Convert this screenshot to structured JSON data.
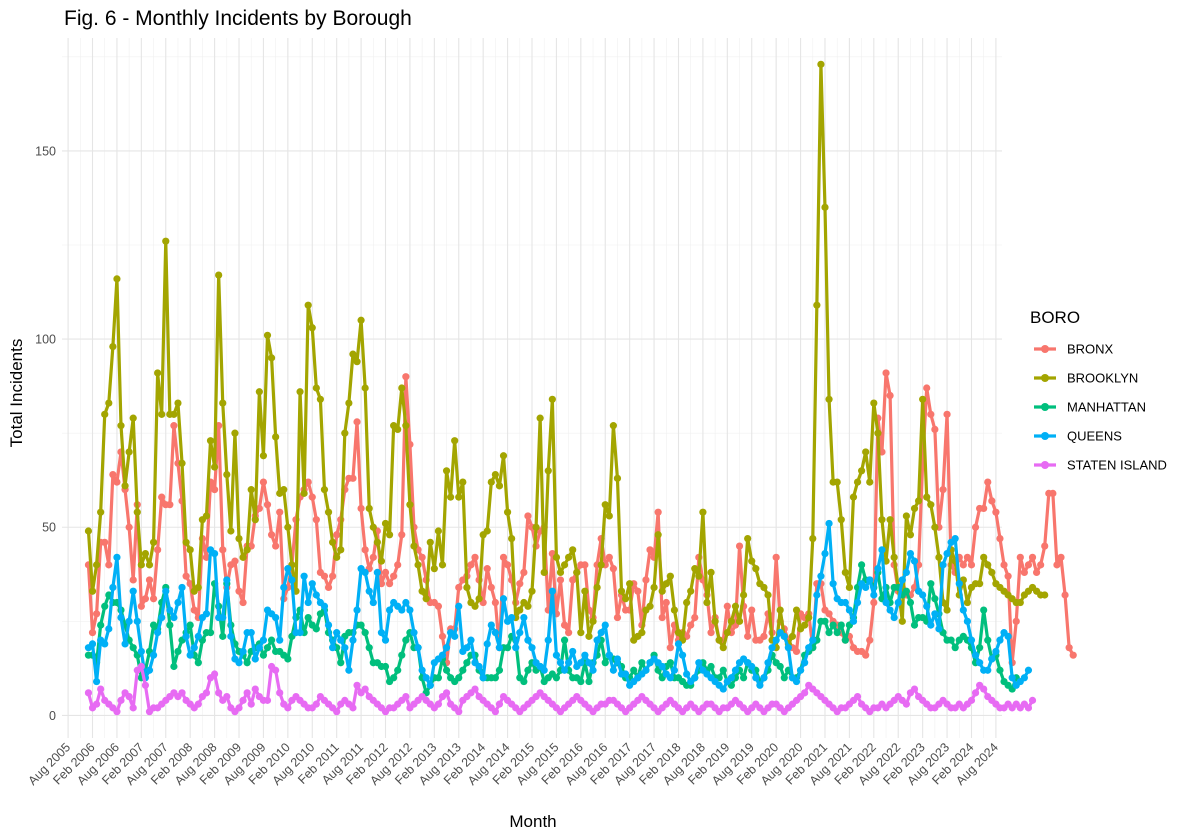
{
  "chart_data": {
    "type": "line",
    "title": "Fig. 6 - Monthly Incidents by Borough",
    "xlabel": "Month",
    "ylabel": "Total Incidents",
    "ylim": [
      -6,
      180
    ],
    "y_ticks": [
      0,
      50,
      100,
      150
    ],
    "x_ticks": [
      "Aug 2005",
      "Feb 2006",
      "Aug 2006",
      "Feb 2007",
      "Aug 2007",
      "Feb 2008",
      "Aug 2008",
      "Feb 2009",
      "Aug 2009",
      "Feb 2010",
      "Aug 2010",
      "Feb 2011",
      "Aug 2011",
      "Feb 2012",
      "Aug 2012",
      "Feb 2013",
      "Aug 2013",
      "Feb 2014",
      "Aug 2014",
      "Feb 2015",
      "Aug 2015",
      "Feb 2016",
      "Aug 2016",
      "Feb 2017",
      "Aug 2017",
      "Feb 2018",
      "Aug 2018",
      "Feb 2019",
      "Aug 2019",
      "Feb 2020",
      "Aug 2020",
      "Feb 2021",
      "Aug 2021",
      "Feb 2022",
      "Aug 2022",
      "Feb 2023",
      "Aug 2023",
      "Feb 2024",
      "Aug 2024"
    ],
    "x_start": "Jan 2006",
    "x_end": "Dec 2023",
    "grid": true,
    "legend": {
      "title": "BORO",
      "placement": "right"
    },
    "series": [
      {
        "name": "BRONX",
        "color": "#F8766D",
        "values": [
          40,
          22,
          27,
          46,
          46,
          40,
          64,
          62,
          70,
          60,
          50,
          36,
          56,
          29,
          31,
          36,
          31,
          44,
          58,
          56,
          56,
          77,
          67,
          57,
          37,
          35,
          28,
          26,
          47,
          42,
          62,
          60,
          77,
          44,
          34,
          40,
          41,
          33,
          30,
          45,
          45,
          53,
          55,
          62,
          56,
          48,
          45,
          54,
          31,
          34,
          40,
          52,
          58,
          60,
          62,
          58,
          52,
          38,
          37,
          34,
          37,
          48,
          52,
          60,
          63,
          63,
          78,
          55,
          44,
          39,
          42,
          49,
          35,
          38,
          35,
          37,
          40,
          48,
          90,
          72,
          50,
          44,
          42,
          36,
          30,
          30,
          29,
          21,
          14,
          23,
          23,
          34,
          36,
          37,
          40,
          42,
          36,
          30,
          39,
          34,
          30,
          18,
          42,
          40,
          36,
          30,
          35,
          38,
          53,
          50,
          45,
          49,
          50,
          28,
          43,
          27,
          36,
          24,
          22,
          36,
          38,
          40,
          40,
          28,
          26,
          40,
          47,
          40,
          42,
          39,
          26,
          32,
          28,
          28,
          35,
          33,
          24,
          36,
          44,
          42,
          54,
          26,
          30,
          18,
          24,
          20,
          22,
          21,
          24,
          26,
          42,
          36,
          32,
          22,
          26,
          20,
          20,
          29,
          22,
          24,
          45,
          29,
          21,
          28,
          20,
          20,
          21,
          27,
          22,
          42,
          25,
          23,
          20,
          18,
          17,
          27,
          26,
          27,
          18,
          35,
          35,
          28,
          27,
          25,
          24,
          22,
          20,
          21,
          18,
          17,
          17,
          16,
          20,
          30,
          79,
          70,
          91,
          85,
          40,
          33,
          36,
          32,
          32,
          34,
          40,
          67,
          87,
          80,
          76,
          50,
          60,
          80,
          40,
          38,
          42,
          40,
          42,
          40,
          50,
          55,
          55,
          62,
          57,
          54,
          47,
          40,
          37,
          14,
          25,
          42,
          38,
          40,
          42,
          38,
          40,
          45,
          59,
          59,
          40,
          42,
          32,
          18,
          16
        ]
      },
      {
        "name": "BROOKLYN",
        "color": "#A3A500",
        "values": [
          49,
          33,
          40,
          54,
          80,
          83,
          98,
          116,
          77,
          61,
          70,
          79,
          54,
          40,
          43,
          40,
          46,
          91,
          80,
          126,
          80,
          80,
          83,
          67,
          46,
          44,
          33,
          34,
          52,
          53,
          73,
          66,
          117,
          83,
          64,
          49,
          75,
          47,
          42,
          44,
          60,
          52,
          86,
          69,
          101,
          95,
          74,
          59,
          60,
          50,
          40,
          33,
          86,
          59,
          109,
          103,
          87,
          84,
          60,
          54,
          46,
          42,
          44,
          75,
          83,
          96,
          94,
          105,
          87,
          55,
          50,
          46,
          41,
          51,
          48,
          77,
          76,
          87,
          77,
          56,
          45,
          40,
          33,
          31,
          46,
          39,
          49,
          40,
          65,
          58,
          73,
          58,
          62,
          34,
          30,
          29,
          31,
          48,
          49,
          62,
          64,
          61,
          69,
          54,
          47,
          26,
          28,
          30,
          29,
          33,
          50,
          79,
          38,
          65,
          84,
          42,
          38,
          40,
          42,
          44,
          38,
          22,
          33,
          21,
          25,
          34,
          40,
          56,
          53,
          77,
          63,
          33,
          31,
          35,
          20,
          21,
          22,
          28,
          29,
          34,
          48,
          33,
          35,
          37,
          28,
          22,
          20,
          30,
          33,
          39,
          37,
          54,
          30,
          38,
          25,
          20,
          18,
          22,
          25,
          29,
          25,
          32,
          47,
          41,
          39,
          35,
          34,
          32,
          20,
          18,
          28,
          21,
          19,
          21,
          28,
          23,
          24,
          26,
          47,
          109,
          173,
          135,
          84,
          62,
          62,
          52,
          38,
          34,
          58,
          62,
          65,
          70,
          62,
          83,
          75,
          52,
          41,
          52,
          42,
          34,
          25,
          53,
          48,
          55,
          57,
          84,
          58,
          56,
          50,
          42,
          30,
          28,
          44,
          41,
          32,
          36,
          30,
          34,
          35,
          35,
          42,
          40,
          38,
          35,
          34,
          33,
          32,
          31,
          30,
          30,
          32,
          33,
          34,
          33,
          32,
          32
        ]
      },
      {
        "name": "MANHATTAN",
        "color": "#00BF7D",
        "values": [
          16,
          16,
          14,
          24,
          29,
          32,
          30,
          30,
          28,
          24,
          20,
          18,
          16,
          10,
          12,
          17,
          24,
          23,
          30,
          34,
          24,
          13,
          17,
          20,
          22,
          24,
          16,
          14,
          20,
          22,
          22,
          35,
          29,
          21,
          35,
          24,
          19,
          17,
          16,
          14,
          17,
          18,
          19,
          16,
          18,
          20,
          17,
          17,
          16,
          15,
          21,
          26,
          28,
          22,
          26,
          24,
          23,
          27,
          28,
          22,
          20,
          18,
          14,
          21,
          22,
          22,
          24,
          24,
          22,
          18,
          14,
          14,
          13,
          13,
          9,
          10,
          12,
          16,
          20,
          22,
          18,
          18,
          10,
          6,
          8,
          10,
          10,
          15,
          12,
          10,
          9,
          10,
          12,
          14,
          16,
          16,
          12,
          10,
          10,
          10,
          10,
          12,
          18,
          18,
          21,
          20,
          10,
          9,
          12,
          14,
          12,
          13,
          9,
          10,
          11,
          10,
          12,
          20,
          12,
          10,
          10,
          9,
          14,
          9,
          14,
          16,
          20,
          14,
          16,
          15,
          14,
          13,
          10,
          10,
          12,
          10,
          14,
          12,
          14,
          16,
          12,
          10,
          13,
          14,
          10,
          10,
          9,
          8,
          8,
          10,
          12,
          14,
          12,
          13,
          10,
          10,
          12,
          9,
          8,
          10,
          12,
          10,
          14,
          12,
          12,
          9,
          10,
          12,
          16,
          14,
          13,
          10,
          12,
          10,
          10,
          12,
          16,
          17,
          18,
          20,
          25,
          25,
          22,
          24,
          22,
          24,
          20,
          24,
          26,
          34,
          40,
          36,
          36,
          34,
          38,
          31,
          34,
          30,
          34,
          34,
          32,
          33,
          30,
          24,
          26,
          26,
          25,
          35,
          31,
          27,
          22,
          20,
          20,
          18,
          20,
          21,
          20,
          18,
          14,
          18,
          28,
          20,
          15,
          16,
          12,
          9,
          8,
          7,
          10
        ]
      },
      {
        "name": "QUEENS",
        "color": "#00B0F6",
        "values": [
          18,
          19,
          9,
          20,
          19,
          23,
          34,
          42,
          26,
          19,
          25,
          33,
          25,
          17,
          10,
          12,
          16,
          22,
          26,
          33,
          28,
          26,
          30,
          34,
          21,
          16,
          18,
          21,
          26,
          27,
          44,
          43,
          26,
          26,
          36,
          21,
          15,
          14,
          17,
          22,
          22,
          15,
          18,
          20,
          28,
          27,
          26,
          20,
          34,
          39,
          36,
          22,
          22,
          37,
          30,
          35,
          32,
          30,
          29,
          24,
          18,
          22,
          20,
          18,
          12,
          20,
          28,
          39,
          38,
          33,
          30,
          38,
          22,
          20,
          28,
          30,
          29,
          28,
          30,
          28,
          22,
          18,
          12,
          10,
          8,
          14,
          15,
          16,
          18,
          22,
          21,
          29,
          17,
          18,
          20,
          14,
          13,
          10,
          19,
          24,
          22,
          18,
          31,
          25,
          26,
          18,
          22,
          26,
          20,
          18,
          14,
          13,
          12,
          20,
          33,
          16,
          14,
          12,
          14,
          17,
          13,
          14,
          16,
          14,
          12,
          20,
          22,
          24,
          16,
          12,
          15,
          11,
          11,
          8,
          9,
          10,
          11,
          12,
          14,
          15,
          14,
          13,
          11,
          10,
          12,
          19,
          16,
          11,
          9,
          10,
          14,
          12,
          11,
          10,
          9,
          8,
          7,
          9,
          10,
          12,
          14,
          15,
          14,
          13,
          10,
          8,
          10,
          14,
          18,
          20,
          22,
          21,
          18,
          10,
          9,
          12,
          14,
          18,
          20,
          32,
          37,
          43,
          51,
          35,
          31,
          30,
          30,
          28,
          25,
          30,
          35,
          34,
          36,
          32,
          39,
          44,
          30,
          28,
          26,
          30,
          36,
          38,
          43,
          41,
          33,
          32,
          29,
          24,
          27,
          23,
          40,
          43,
          46,
          47,
          35,
          28,
          25,
          20,
          16,
          14,
          12,
          12,
          15,
          17,
          20,
          22,
          21,
          10,
          8,
          9,
          10,
          12
        ]
      },
      {
        "name": "STATEN ISLAND",
        "color": "#E76BF3",
        "values": [
          6,
          2,
          3,
          7,
          4,
          3,
          2,
          1,
          4,
          6,
          5,
          2,
          12,
          13,
          8,
          1,
          2,
          2,
          3,
          4,
          5,
          6,
          5,
          6,
          4,
          3,
          2,
          3,
          5,
          6,
          10,
          11,
          6,
          4,
          5,
          2,
          1,
          2,
          4,
          6,
          3,
          7,
          5,
          4,
          4,
          13,
          12,
          6,
          3,
          2,
          4,
          5,
          4,
          3,
          2,
          2,
          3,
          5,
          4,
          3,
          2,
          1,
          3,
          4,
          3,
          2,
          8,
          6,
          7,
          5,
          4,
          3,
          2,
          1,
          2,
          2,
          3,
          4,
          5,
          2,
          3,
          4,
          5,
          4,
          3,
          2,
          3,
          5,
          6,
          3,
          2,
          1,
          4,
          5,
          6,
          7,
          5,
          4,
          3,
          2,
          1,
          3,
          5,
          4,
          3,
          2,
          1,
          2,
          3,
          4,
          5,
          6,
          5,
          4,
          3,
          2,
          1,
          2,
          3,
          4,
          5,
          4,
          3,
          2,
          1,
          2,
          3,
          3,
          4,
          4,
          3,
          2,
          1,
          2,
          3,
          4,
          5,
          4,
          3,
          2,
          1,
          2,
          3,
          4,
          3,
          2,
          1,
          2,
          3,
          2,
          1,
          2,
          3,
          3,
          2,
          1,
          2,
          2,
          3,
          4,
          3,
          2,
          1,
          2,
          3,
          2,
          1,
          2,
          3,
          3,
          2,
          1,
          2,
          3,
          4,
          5,
          6,
          8,
          7,
          6,
          5,
          4,
          3,
          2,
          1,
          2,
          2,
          3,
          4,
          5,
          3,
          2,
          1,
          2,
          2,
          3,
          2,
          3,
          4,
          5,
          4,
          3,
          6,
          7,
          5,
          4,
          3,
          2,
          2,
          3,
          4,
          3,
          2,
          2,
          3,
          2,
          3,
          4,
          6,
          8,
          7,
          5,
          4,
          3,
          2,
          2,
          3,
          2,
          3,
          2,
          3,
          2,
          4
        ]
      }
    ]
  }
}
